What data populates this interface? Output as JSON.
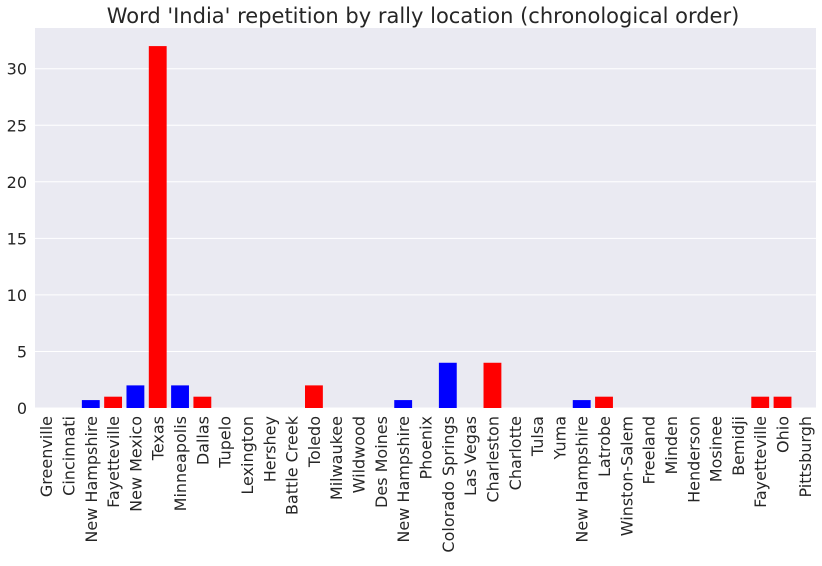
{
  "chart_data": {
    "type": "bar",
    "title": "Word 'India' repetition by rally location (chronological order)",
    "xlabel": "",
    "ylabel": "",
    "ylim": [
      0,
      33.6
    ],
    "yticks": [
      0,
      5,
      10,
      15,
      20,
      25,
      30
    ],
    "grid": true,
    "background": "#eaeaf2",
    "categories": [
      "Greenville",
      "Cincinnati",
      "New Hampshire",
      "Fayetteville",
      "New Mexico",
      "Texas",
      "Minneapolis",
      "Dallas",
      "Tupelo",
      "Lexington",
      "Hershey",
      "Battle Creek",
      "Toledo",
      "Milwaukee",
      "Wildwood",
      "Des Moines",
      "New Hampshire",
      "Phoenix",
      "Colorado Springs",
      "Las Vegas",
      "Charleston",
      "Charlotte",
      "Tulsa",
      "Yuma",
      "New Hampshire",
      "Latrobe",
      "Winston-Salem",
      "Freeland",
      "Minden",
      "Henderson",
      "Mosinee",
      "Bemidji",
      "Fayetteville",
      "Ohio",
      "Pittsburgh"
    ],
    "values": [
      0,
      0,
      0.7,
      1,
      2,
      32,
      2,
      1,
      0,
      0,
      0,
      0,
      2,
      0,
      0,
      0,
      0.7,
      0,
      4,
      0,
      4,
      0,
      0,
      0,
      0.7,
      1,
      0,
      0,
      0,
      0,
      0,
      0,
      1,
      1,
      0
    ],
    "colors": [
      "#0000ff",
      "#0000ff",
      "#0000ff",
      "#ff0000",
      "#0000ff",
      "#ff0000",
      "#0000ff",
      "#ff0000",
      "#ff0000",
      "#ff0000",
      "#ff0000",
      "#ff0000",
      "#ff0000",
      "#ff0000",
      "#ff0000",
      "#ff0000",
      "#0000ff",
      "#ff0000",
      "#0000ff",
      "#ff0000",
      "#ff0000",
      "#ff0000",
      "#ff0000",
      "#ff0000",
      "#0000ff",
      "#ff0000",
      "#ff0000",
      "#ff0000",
      "#ff0000",
      "#ff0000",
      "#ff0000",
      "#ff0000",
      "#ff0000",
      "#ff0000",
      "#ff0000"
    ]
  }
}
